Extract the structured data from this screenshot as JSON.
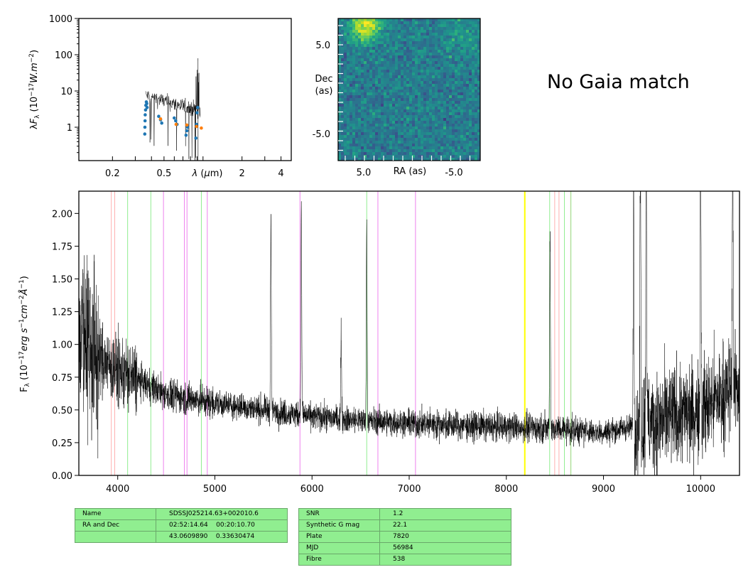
{
  "chart_data": [
    {
      "type": "scatter",
      "panel": "sed",
      "ylabel": "λF_λ (10^-17 W.m^-2)",
      "xlabel": "λ (μm)",
      "xscale": "log",
      "yscale": "log",
      "xlim": [
        0.11,
        4.8
      ],
      "ylim": [
        0.12,
        1000
      ],
      "xticks": [
        0.2,
        0.5,
        2,
        4
      ],
      "yticks": [
        1,
        10,
        100,
        1000
      ],
      "series": [
        {
          "color": "#1f77b4",
          "x": [
            0.355,
            0.356,
            0.357,
            0.358,
            0.36,
            0.362,
            0.365,
            0.368,
            0.37,
            0.455,
            0.47,
            0.48,
            0.6,
            0.615,
            0.63,
            0.74,
            0.75,
            0.76,
            0.88,
            0.89,
            0.9,
            0.91
          ],
          "y": [
            0.65,
            1.0,
            1.5,
            2.2,
            3.0,
            4.0,
            5.0,
            4.5,
            3.5,
            2.0,
            1.6,
            1.3,
            1.8,
            1.5,
            1.2,
            0.6,
            0.8,
            1.0,
            0.5,
            1.2,
            2.5,
            3.5
          ]
        },
        {
          "color": "#ff7f0e",
          "x": [
            0.47,
            0.62,
            0.75,
            0.89,
            0.97
          ],
          "y": [
            1.7,
            1.2,
            1.15,
            1.05,
            0.95
          ]
        }
      ]
    },
    {
      "type": "heatmap",
      "panel": "image",
      "xlabel": "RA (as)",
      "ylabel": "Dec\n(as)",
      "xticklabels": [
        "5.0",
        "-5.0"
      ],
      "yticklabels": [
        "5.0",
        "-5.0"
      ],
      "colormap": "viridis"
    },
    {
      "type": "line",
      "panel": "spectrum",
      "ylabel": "F_λ (10^-17 erg s^-1 cm^-2 Å^-1)",
      "xlim": [
        3600,
        10400
      ],
      "ylim": [
        0,
        2.17
      ],
      "xticks": [
        4000,
        5000,
        6000,
        7000,
        8000,
        9000,
        10000
      ],
      "yticks": [
        "0.00",
        "0.25",
        "0.50",
        "0.75",
        "1.00",
        "1.25",
        "1.50",
        "1.75",
        "2.00"
      ],
      "flux_anchors": [
        [
          3600,
          1.2
        ],
        [
          3800,
          0.9
        ],
        [
          4000,
          0.8
        ],
        [
          4500,
          0.62
        ],
        [
          5000,
          0.55
        ],
        [
          5500,
          0.5
        ],
        [
          6000,
          0.45
        ],
        [
          6500,
          0.42
        ],
        [
          7000,
          0.4
        ],
        [
          7500,
          0.38
        ],
        [
          8000,
          0.37
        ],
        [
          8500,
          0.36
        ],
        [
          9000,
          0.33
        ],
        [
          9500,
          0.4
        ],
        [
          10000,
          0.5
        ],
        [
          10400,
          0.7
        ]
      ],
      "emission_features": [
        [
          5577,
          1.5
        ],
        [
          5890,
          1.65
        ],
        [
          6300,
          0.7
        ],
        [
          6563,
          1.55
        ],
        [
          8450,
          1.5
        ],
        [
          9310,
          1.8
        ],
        [
          9380,
          2.1
        ],
        [
          9440,
          2.3
        ],
        [
          10000,
          2.4
        ],
        [
          10330,
          2.3
        ]
      ],
      "lines": [
        {
          "x": 3934,
          "color": "#ffb0b0"
        },
        {
          "x": 3969,
          "color": "#ffb0b0"
        },
        {
          "x": 4102,
          "color": "#90ee90"
        },
        {
          "x": 4341,
          "color": "#90ee90"
        },
        {
          "x": 4471,
          "color": "#ee82ee"
        },
        {
          "x": 4686,
          "color": "#ee82ee"
        },
        {
          "x": 4713,
          "color": "#ee82ee"
        },
        {
          "x": 4861,
          "color": "#90ee90"
        },
        {
          "x": 4922,
          "color": "#ee82ee"
        },
        {
          "x": 5876,
          "color": "#ee82ee"
        },
        {
          "x": 6563,
          "color": "#90ee90"
        },
        {
          "x": 6678,
          "color": "#ee82ee"
        },
        {
          "x": 7065,
          "color": "#ee82ee"
        },
        {
          "x": 8190,
          "color": "#ffff00",
          "width": 2
        },
        {
          "x": 8446,
          "color": "#90ee90"
        },
        {
          "x": 8498,
          "color": "#ffb0b0"
        },
        {
          "x": 8542,
          "color": "#ffb0b0"
        },
        {
          "x": 8598,
          "color": "#90ee90"
        },
        {
          "x": 8662,
          "color": "#ffb0b0"
        },
        {
          "x": 8665,
          "color": "#90ee90"
        }
      ]
    }
  ],
  "gaia": {
    "text": "No Gaia match"
  },
  "info_table_1": [
    [
      "Name",
      "SDSSJ025214.63+002010.6"
    ],
    [
      "RA and Dec",
      "02:52:14.64    00:20:10.70"
    ],
    [
      "",
      "43.0609890    0.33630474"
    ]
  ],
  "info_table_2": [
    [
      "SNR",
      "1.2"
    ],
    [
      "Synthetic G mag",
      "22.1"
    ],
    [
      "Plate",
      "7820"
    ],
    [
      "MJD",
      "56984"
    ],
    [
      "Fibre",
      "538"
    ]
  ]
}
